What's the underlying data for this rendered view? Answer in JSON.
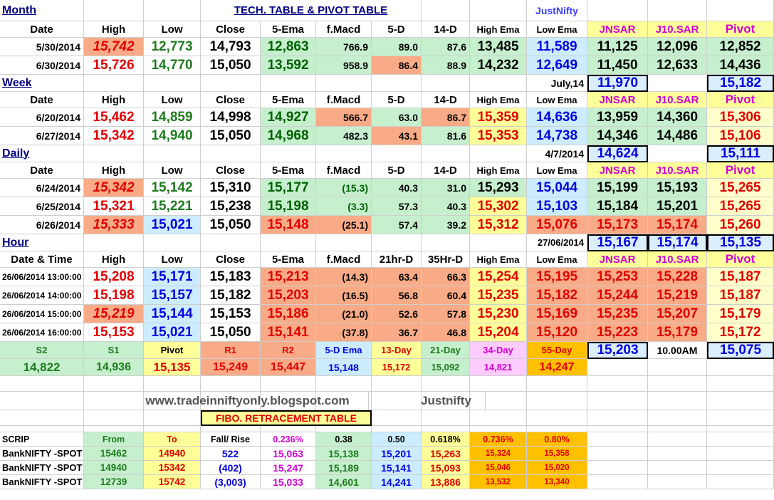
{
  "sheet": {
    "title_main": "TECH. TABLE  & PIVOT TABLE",
    "brand": "JustNifty",
    "website": "www.tradeinniftyonly.blogspot.com",
    "brand2": "Justnifty",
    "fibo_title": "FIBO. RETRACEMENT TABLE"
  },
  "colors": {
    "green": "#c6efce",
    "salmon": "#f8ab86",
    "yellow": "#ffff99",
    "lightyellow": "#ffffcc",
    "blue": "#ccecff",
    "orange": "#ffc000",
    "red_text": "#e00000",
    "green_text": "#1e7b1e",
    "magenta_text": "#d000d0",
    "navy_text": "#000080",
    "blue_text": "#0000e0"
  },
  "sections": {
    "month": "Month",
    "week": "Week",
    "daily": "Daily",
    "hour": "Hour"
  },
  "headers": {
    "main": [
      "Date",
      "High",
      "Low",
      "Close",
      "5-Ema",
      "f.Macd",
      "5-D",
      "14-D",
      "High Ema",
      "Low Ema",
      "JNSAR",
      "J10.SAR",
      "Pivot"
    ],
    "hour": [
      "Date & Time",
      "High",
      "Low",
      "Close",
      "5-Ema",
      "f.Macd",
      "21hr-D",
      "35Hr-D",
      "High Ema",
      "Low Ema",
      "JNSAR",
      "J10.SAR",
      "Pivot"
    ]
  },
  "month_rows": [
    [
      "5/30/2014",
      "15,742",
      "12,773",
      "14,793",
      "12,863",
      "766.9",
      "89.0",
      "87.6",
      "13,485",
      "11,589",
      "11,125",
      "12,096",
      "12,852"
    ],
    [
      "6/30/2014",
      "15,726",
      "14,770",
      "15,050",
      "13,592",
      "958.9",
      "86.4",
      "88.9",
      "14,232",
      "12,649",
      "11,450",
      "12,633",
      "14,436"
    ]
  ],
  "week_summary": {
    "label": "July,14",
    "jnsar": "11,970",
    "pivot": "15,182"
  },
  "week_rows": [
    [
      "6/20/2014",
      "15,462",
      "14,859",
      "14,998",
      "14,927",
      "566.7",
      "63.0",
      "86.7",
      "15,359",
      "14,636",
      "13,959",
      "14,360",
      "15,306"
    ],
    [
      "6/27/2014",
      "15,342",
      "14,940",
      "15,050",
      "14,968",
      "482.3",
      "43.1",
      "81.6",
      "15,353",
      "14,738",
      "14,346",
      "14,486",
      "15,106"
    ]
  ],
  "daily_summary": {
    "label": "4/7/2014",
    "jnsar": "14,624",
    "pivot": "15,111"
  },
  "daily_rows": [
    [
      "6/24/2014",
      "15,342",
      "15,142",
      "15,310",
      "15,177",
      "(15.3)",
      "40.3",
      "31.0",
      "15,293",
      "15,044",
      "15,199",
      "15,193",
      "15,265"
    ],
    [
      "6/25/2014",
      "15,321",
      "15,221",
      "15,238",
      "15,198",
      "(3.3)",
      "57.3",
      "40.3",
      "15,302",
      "15,103",
      "15,184",
      "15,201",
      "15,265"
    ],
    [
      "6/26/2014",
      "15,333",
      "15,021",
      "15,050",
      "15,148",
      "(25.1)",
      "57.4",
      "39.2",
      "15,312",
      "15,076",
      "15,173",
      "15,174",
      "15,260"
    ]
  ],
  "hour_summary": {
    "label": "27/06/2014",
    "jnsar": "15,167",
    "j10": "15,174",
    "pivot": "15,135"
  },
  "hour_rows": [
    [
      "26/06/2014 13:00:00",
      "15,208",
      "15,171",
      "15,183",
      "15,213",
      "(14.3)",
      "63.4",
      "66.3",
      "15,254",
      "15,195",
      "15,253",
      "15,228",
      "15,187"
    ],
    [
      "26/06/2014 14:00:00",
      "15,198",
      "15,157",
      "15,182",
      "15,203",
      "(16.5)",
      "56.8",
      "60.4",
      "15,235",
      "15,182",
      "15,244",
      "15,219",
      "15,187"
    ],
    [
      "26/06/2014 15:00:00",
      "15,219",
      "15,144",
      "15,153",
      "15,186",
      "(21.0)",
      "52.6",
      "57.8",
      "15,230",
      "15,169",
      "15,235",
      "15,207",
      "15,179"
    ],
    [
      "26/06/2014 16:00:00",
      "15,153",
      "15,021",
      "15,050",
      "15,141",
      "(37.8)",
      "36.7",
      "46.8",
      "15,204",
      "15,120",
      "15,223",
      "15,179",
      "15,172"
    ]
  ],
  "pivot_levels": {
    "labels": [
      "S2",
      "S1",
      "Pivot",
      "R1",
      "R2",
      "5-D Ema",
      "13-Day",
      "21-Day",
      "34-Day",
      "55-Day"
    ],
    "values": [
      "14,822",
      "14,936",
      "15,135",
      "15,249",
      "15,447",
      "15,148",
      "15,172",
      "15,092",
      "14,821",
      "14,247"
    ],
    "extra_jnsar": "15,203",
    "extra_time": "10.00AM",
    "extra_pivot": "15,075"
  },
  "fibo": {
    "headers": [
      "SCRIP",
      "From",
      "To",
      "Fall/ Rise",
      "0.236%",
      "0.38",
      "0.50",
      "0.618%",
      "0.736%",
      "0.80%"
    ],
    "rows": [
      [
        "BankNIFTY -SPOT",
        "15462",
        "14940",
        "522",
        "15,063",
        "15,138",
        "15,201",
        "15,263",
        "15,324",
        "15,358"
      ],
      [
        "BankNIFTY -SPOT",
        "14940",
        "15342",
        "(402)",
        "15,247",
        "15,189",
        "15,141",
        "15,093",
        "15,046",
        "15,020"
      ],
      [
        "BankNIFTY -SPOT",
        "12739",
        "15742",
        "(3,003)",
        "15,033",
        "14,601",
        "14,241",
        "13,886",
        "13,532",
        "13,340"
      ]
    ]
  }
}
